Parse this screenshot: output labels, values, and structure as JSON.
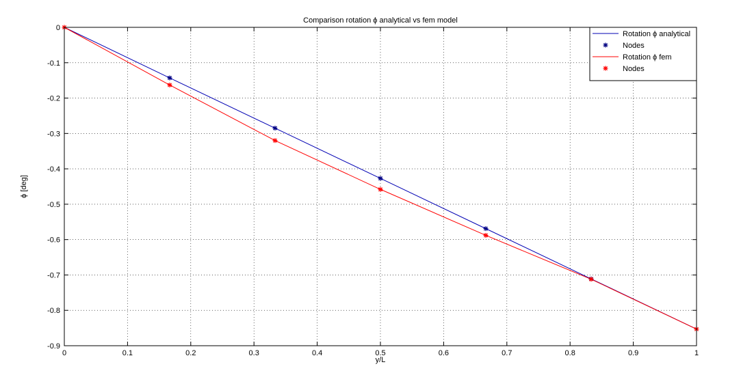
{
  "chart_data": {
    "type": "line",
    "title": "Comparison rotation ϕ analytical vs fem model",
    "xlabel": "y/L",
    "ylabel": "ϕ [deg]",
    "xlim": [
      0,
      1
    ],
    "ylim": [
      -0.9,
      0
    ],
    "xticks": [
      0,
      0.1,
      0.2,
      0.3,
      0.4,
      0.5,
      0.6,
      0.7,
      0.8,
      0.9,
      1
    ],
    "xtick_labels": [
      "0",
      "0.1",
      "0.2",
      "0.3",
      "0.4",
      "0.5",
      "0.6",
      "0.7",
      "0.8",
      "0.9",
      "1"
    ],
    "yticks": [
      0,
      -0.1,
      -0.2,
      -0.3,
      -0.4,
      -0.5,
      -0.6,
      -0.7,
      -0.8,
      -0.9
    ],
    "ytick_labels": [
      "0",
      "-0.1",
      "-0.2",
      "-0.3",
      "-0.4",
      "-0.5",
      "-0.6",
      "-0.7",
      "-0.8",
      "-0.9"
    ],
    "grid": true,
    "grid_style": "dotted",
    "legend_position": "top-right",
    "series": [
      {
        "name": "Rotation ϕ analytical",
        "style": "line",
        "color": "#0000b3",
        "x": [
          0,
          0.1667,
          0.3333,
          0.5,
          0.6667,
          0.8333,
          1
        ],
        "y": [
          0,
          -0.143,
          -0.285,
          -0.427,
          -0.569,
          -0.711,
          -0.853
        ]
      },
      {
        "name": "Nodes",
        "style": "marker",
        "marker": "*",
        "color": "#000080",
        "x": [
          0.1667,
          0.3333,
          0.5,
          0.6667,
          0.8333
        ],
        "y": [
          -0.143,
          -0.285,
          -0.427,
          -0.569,
          -0.711
        ]
      },
      {
        "name": "Rotation ϕ fem",
        "style": "line",
        "color": "#ff0000",
        "x": [
          0,
          0.1667,
          0.3333,
          0.5,
          0.6667,
          0.8333,
          1
        ],
        "y": [
          0,
          -0.163,
          -0.32,
          -0.458,
          -0.588,
          -0.712,
          -0.853
        ]
      },
      {
        "name": "Nodes",
        "style": "marker",
        "marker": "*",
        "color": "#ff0000",
        "x": [
          0,
          0.1667,
          0.3333,
          0.5,
          0.6667,
          0.8333,
          1
        ],
        "y": [
          0,
          -0.163,
          -0.32,
          -0.458,
          -0.588,
          -0.712,
          -0.853
        ]
      }
    ]
  }
}
